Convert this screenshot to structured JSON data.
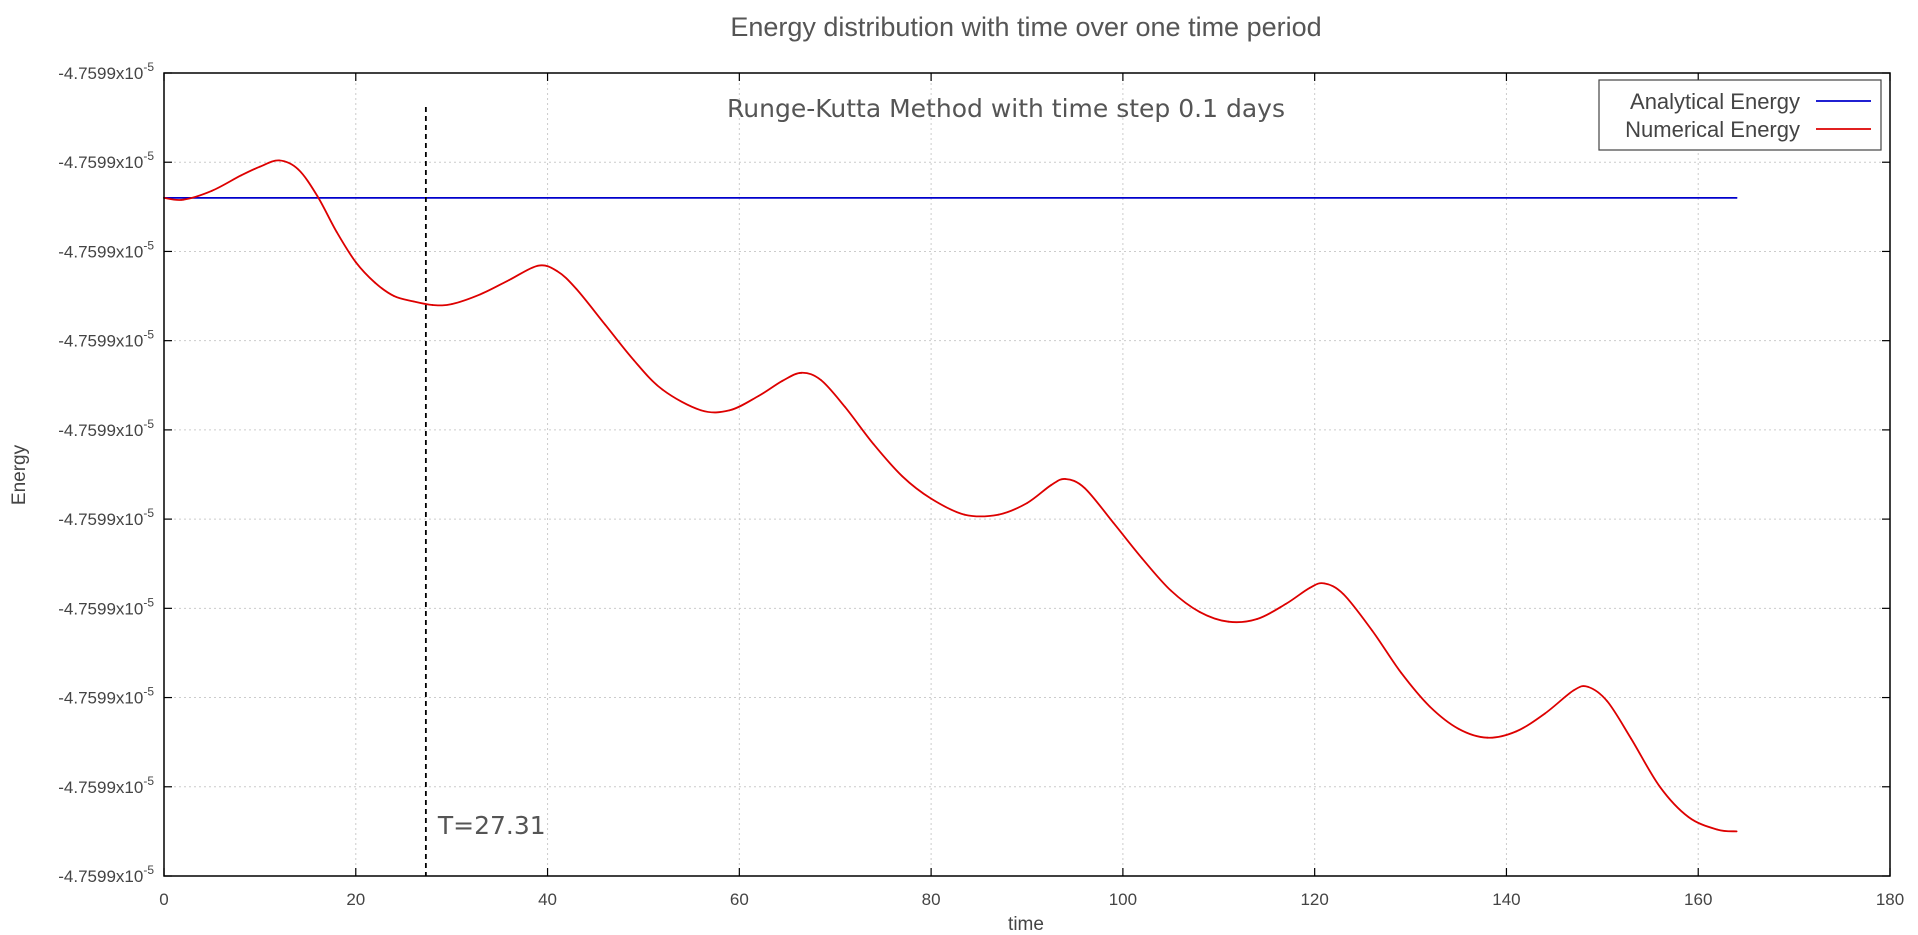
{
  "chart_data": {
    "type": "line",
    "title": "Energy distribution with time over one time period",
    "subtitle": "Runge-Kutta Method with time step 0.1 days",
    "xlabel": "time",
    "ylabel": "Energy",
    "xlim": [
      0,
      180
    ],
    "ylim": [
      0,
      9
    ],
    "x_ticks": [
      "0",
      "20",
      "40",
      "60",
      "80",
      "100",
      "120",
      "140",
      "160",
      "180"
    ],
    "y_tick_base": "-4.7599x10",
    "y_tick_exp": "-5",
    "y_tick_count": 10,
    "grid": true,
    "legend": "top-right",
    "annotation": {
      "text": "T=27.31",
      "x": 27.31
    },
    "series": [
      {
        "name": "Analytical Energy",
        "color": "#0000cc",
        "x": [
          0,
          164
        ],
        "y": [
          7.6,
          7.6
        ]
      },
      {
        "name": "Numerical Energy",
        "color": "#dd0000",
        "x": [
          0,
          2,
          5,
          8,
          10,
          12,
          14,
          16,
          18,
          20,
          22,
          24,
          26,
          28,
          30,
          33,
          36,
          39,
          41,
          43,
          46,
          49,
          52,
          56,
          59,
          62,
          64.5,
          66.5,
          68.5,
          71,
          74,
          77,
          80,
          83.5,
          87,
          90,
          92.5,
          94,
          96,
          99,
          102,
          105,
          108,
          111,
          114,
          117,
          119.5,
          121,
          123,
          126,
          129,
          132,
          135,
          138,
          141,
          144,
          147,
          148.5,
          150.5,
          153,
          156,
          159,
          162,
          164
        ],
        "y": [
          7.6,
          7.58,
          7.68,
          7.85,
          7.95,
          8.02,
          7.92,
          7.62,
          7.22,
          6.88,
          6.65,
          6.5,
          6.44,
          6.4,
          6.41,
          6.52,
          6.68,
          6.84,
          6.78,
          6.58,
          6.18,
          5.78,
          5.45,
          5.22,
          5.22,
          5.38,
          5.55,
          5.64,
          5.56,
          5.26,
          4.84,
          4.48,
          4.23,
          4.05,
          4.05,
          4.18,
          4.38,
          4.45,
          4.35,
          3.96,
          3.56,
          3.2,
          2.96,
          2.85,
          2.88,
          3.05,
          3.23,
          3.28,
          3.16,
          2.75,
          2.28,
          1.9,
          1.65,
          1.55,
          1.62,
          1.82,
          2.08,
          2.12,
          1.96,
          1.54,
          1.0,
          0.66,
          0.52,
          0.5
        ]
      }
    ]
  }
}
